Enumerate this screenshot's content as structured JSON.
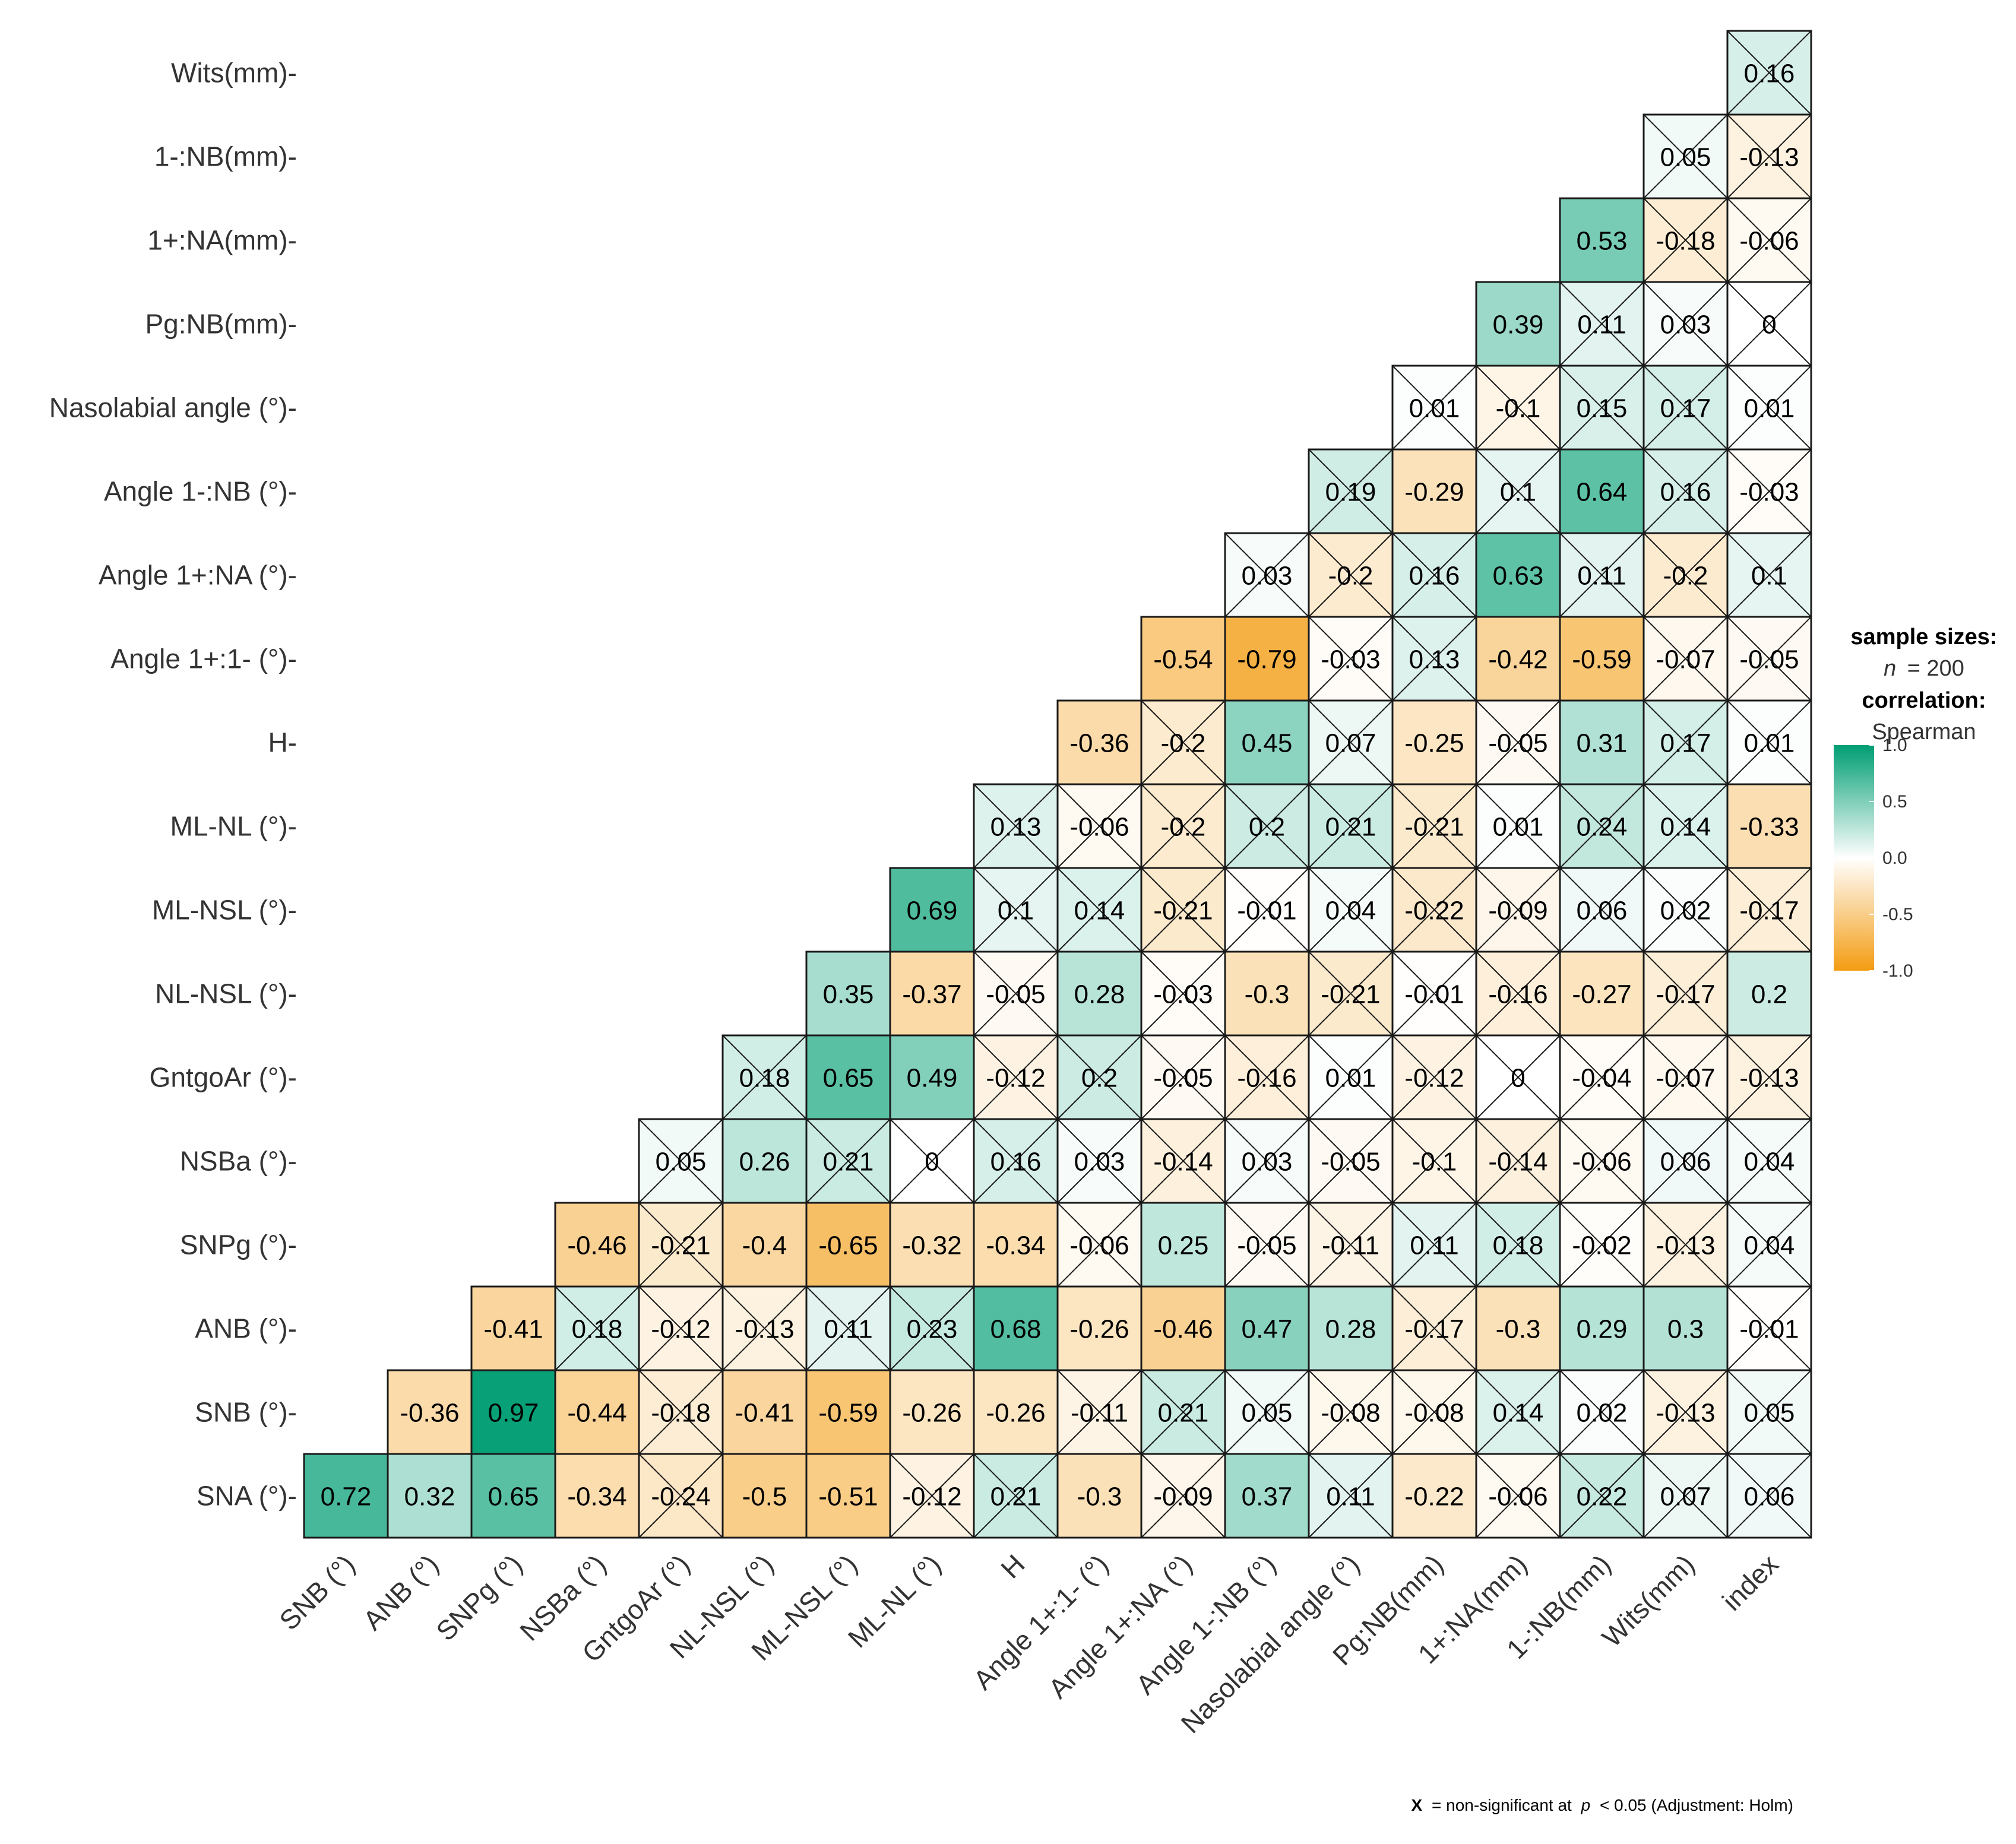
{
  "chart_data": {
    "type": "heatmap",
    "title": "",
    "rows": [
      "SNA (°)",
      "SNB (°)",
      "ANB (°)",
      "SNPg (°)",
      "NSBa (°)",
      "GntgoAr (°)",
      "NL-NSL (°)",
      "ML-NSL (°)",
      "ML-NL (°)",
      "H",
      "Angle 1+:1- (°)",
      "Angle 1+:NA (°)",
      "Angle 1-:NB (°)",
      "Nasolabial angle (°)",
      "Pg:NB(mm)",
      "1+:NA(mm)",
      "1-:NB(mm)",
      "Wits(mm)"
    ],
    "row_labels": [
      "SNA (°)-",
      "SNB (°)-",
      "ANB (°)-",
      "SNPg (°)-",
      "NSBa (°)-",
      "GntgoAr (°)-",
      "NL-NSL (°)-",
      "ML-NSL (°)-",
      "ML-NL (°)-",
      "H-",
      "Angle 1+:1- (°)-",
      "Angle 1+:NA (°)-",
      "Angle 1-:NB (°)-",
      "Nasolabial angle (°)-",
      "Pg:NB(mm)-",
      "1+:NA(mm)-",
      "1-:NB(mm)-",
      "Wits(mm)-"
    ],
    "columns": [
      "SNB (°)",
      "ANB (°)",
      "SNPg (°)",
      "NSBa (°)",
      "GntgoAr (°)",
      "NL-NSL (°)",
      "ML-NSL (°)",
      "ML-NL (°)",
      "H",
      "Angle 1+:1- (°)",
      "Angle 1+:NA (°)",
      "Angle 1-:NB (°)",
      "Nasolabial angle (°)",
      "Pg:NB(mm)",
      "1+:NA(mm)",
      "1-:NB(mm)",
      "Wits(mm)",
      "index"
    ],
    "values": [
      [
        "0.72",
        "0.32",
        "0.65",
        "-0.34",
        "-0.24",
        "-0.5",
        "-0.51",
        "-0.12",
        "0.21",
        "-0.3",
        "-0.09",
        "0.37",
        "0.11",
        "-0.22",
        "-0.06",
        "0.22",
        "0.07",
        "0.06"
      ],
      [
        null,
        "-0.36",
        "0.97",
        "-0.44",
        "-0.18",
        "-0.41",
        "-0.59",
        "-0.26",
        "-0.26",
        "-0.11",
        "0.21",
        "0.05",
        "-0.08",
        "-0.08",
        "0.14",
        "0.02",
        "-0.13",
        "0.05"
      ],
      [
        null,
        null,
        "-0.41",
        "0.18",
        "-0.12",
        "-0.13",
        "0.11",
        "0.23",
        "0.68",
        "-0.26",
        "-0.46",
        "0.47",
        "0.28",
        "-0.17",
        "-0.3",
        "0.29",
        "0.3",
        "-0.01"
      ],
      [
        null,
        null,
        null,
        "-0.46",
        "-0.21",
        "-0.4",
        "-0.65",
        "-0.32",
        "-0.34",
        "-0.06",
        "0.25",
        "-0.05",
        "-0.11",
        "0.11",
        "0.18",
        "-0.02",
        "-0.13",
        "0.04"
      ],
      [
        null,
        null,
        null,
        null,
        "0.05",
        "0.26",
        "0.21",
        "0",
        "0.16",
        "0.03",
        "-0.14",
        "0.03",
        "-0.05",
        "-0.1",
        "-0.14",
        "-0.06",
        "0.06",
        "0.04"
      ],
      [
        null,
        null,
        null,
        null,
        null,
        "0.18",
        "0.65",
        "0.49",
        "-0.12",
        "0.2",
        "-0.05",
        "-0.16",
        "0.01",
        "-0.12",
        "0",
        "-0.04",
        "-0.07",
        "-0.13"
      ],
      [
        null,
        null,
        null,
        null,
        null,
        null,
        "0.35",
        "-0.37",
        "-0.05",
        "0.28",
        "-0.03",
        "-0.3",
        "-0.21",
        "-0.01",
        "-0.16",
        "-0.27",
        "-0.17",
        "0.2"
      ],
      [
        null,
        null,
        null,
        null,
        null,
        null,
        null,
        "0.69",
        "0.1",
        "0.14",
        "-0.21",
        "-0.01",
        "0.04",
        "-0.22",
        "-0.09",
        "0.06",
        "0.02",
        "-0.17"
      ],
      [
        null,
        null,
        null,
        null,
        null,
        null,
        null,
        null,
        "0.13",
        "-0.06",
        "-0.2",
        "0.2",
        "0.21",
        "-0.21",
        "0.01",
        "0.24",
        "0.14",
        "-0.33"
      ],
      [
        null,
        null,
        null,
        null,
        null,
        null,
        null,
        null,
        null,
        "-0.36",
        "-0.2",
        "0.45",
        "0.07",
        "-0.25",
        "-0.05",
        "0.31",
        "0.17",
        "0.01"
      ],
      [
        null,
        null,
        null,
        null,
        null,
        null,
        null,
        null,
        null,
        null,
        "-0.54",
        "-0.79",
        "-0.03",
        "0.13",
        "-0.42",
        "-0.59",
        "-0.07",
        "-0.05"
      ],
      [
        null,
        null,
        null,
        null,
        null,
        null,
        null,
        null,
        null,
        null,
        null,
        "0.03",
        "-0.2",
        "0.16",
        "0.63",
        "0.11",
        "-0.2",
        "0.1"
      ],
      [
        null,
        null,
        null,
        null,
        null,
        null,
        null,
        null,
        null,
        null,
        null,
        null,
        "0.19",
        "-0.29",
        "0.1",
        "0.64",
        "0.16",
        "-0.03"
      ],
      [
        null,
        null,
        null,
        null,
        null,
        null,
        null,
        null,
        null,
        null,
        null,
        null,
        null,
        "0.01",
        "-0.1",
        "0.15",
        "0.17",
        "0.01"
      ],
      [
        null,
        null,
        null,
        null,
        null,
        null,
        null,
        null,
        null,
        null,
        null,
        null,
        null,
        null,
        "0.39",
        "0.11",
        "0.03",
        "0"
      ],
      [
        null,
        null,
        null,
        null,
        null,
        null,
        null,
        null,
        null,
        null,
        null,
        null,
        null,
        null,
        null,
        "0.53",
        "-0.18",
        "-0.06"
      ],
      [
        null,
        null,
        null,
        null,
        null,
        null,
        null,
        null,
        null,
        null,
        null,
        null,
        null,
        null,
        null,
        null,
        "0.05",
        "-0.13"
      ],
      [
        null,
        null,
        null,
        null,
        null,
        null,
        null,
        null,
        null,
        null,
        null,
        null,
        null,
        null,
        null,
        null,
        null,
        "0.16"
      ]
    ],
    "non_significant": [
      [
        false,
        false,
        false,
        false,
        true,
        false,
        false,
        true,
        true,
        false,
        true,
        false,
        true,
        false,
        true,
        true,
        true,
        true
      ],
      [
        false,
        false,
        false,
        false,
        true,
        false,
        false,
        false,
        false,
        true,
        true,
        true,
        true,
        true,
        true,
        true,
        true,
        true
      ],
      [
        false,
        false,
        false,
        true,
        true,
        true,
        true,
        true,
        false,
        false,
        false,
        false,
        false,
        true,
        false,
        false,
        false,
        true
      ],
      [
        false,
        false,
        false,
        false,
        true,
        false,
        false,
        false,
        false,
        true,
        false,
        true,
        true,
        true,
        true,
        true,
        true,
        true
      ],
      [
        false,
        false,
        false,
        false,
        true,
        false,
        true,
        true,
        true,
        true,
        true,
        true,
        true,
        true,
        true,
        true,
        true,
        true
      ],
      [
        false,
        false,
        false,
        false,
        false,
        true,
        false,
        false,
        true,
        true,
        true,
        true,
        true,
        true,
        true,
        true,
        true,
        true
      ],
      [
        false,
        false,
        false,
        false,
        false,
        false,
        false,
        false,
        true,
        false,
        true,
        false,
        true,
        true,
        true,
        false,
        true,
        false
      ],
      [
        false,
        false,
        false,
        false,
        false,
        false,
        false,
        false,
        true,
        true,
        true,
        true,
        true,
        true,
        true,
        true,
        true,
        true
      ],
      [
        false,
        false,
        false,
        false,
        false,
        false,
        false,
        false,
        true,
        true,
        true,
        true,
        true,
        true,
        true,
        true,
        true,
        false
      ],
      [
        false,
        false,
        false,
        false,
        false,
        false,
        false,
        false,
        false,
        false,
        true,
        false,
        true,
        false,
        true,
        false,
        true,
        true
      ],
      [
        false,
        false,
        false,
        false,
        false,
        false,
        false,
        false,
        false,
        false,
        false,
        false,
        true,
        true,
        false,
        false,
        true,
        true
      ],
      [
        false,
        false,
        false,
        false,
        false,
        false,
        false,
        false,
        false,
        false,
        false,
        true,
        true,
        true,
        false,
        true,
        true,
        true
      ],
      [
        false,
        false,
        false,
        false,
        false,
        false,
        false,
        false,
        false,
        false,
        false,
        false,
        true,
        false,
        true,
        false,
        true,
        true
      ],
      [
        false,
        false,
        false,
        false,
        false,
        false,
        false,
        false,
        false,
        false,
        false,
        false,
        false,
        true,
        true,
        true,
        true,
        true
      ],
      [
        false,
        false,
        false,
        false,
        false,
        false,
        false,
        false,
        false,
        false,
        false,
        false,
        false,
        false,
        false,
        true,
        true,
        true
      ],
      [
        false,
        false,
        false,
        false,
        false,
        false,
        false,
        false,
        false,
        false,
        false,
        false,
        false,
        false,
        false,
        false,
        true,
        true
      ],
      [
        false,
        false,
        false,
        false,
        false,
        false,
        false,
        false,
        false,
        false,
        false,
        false,
        false,
        false,
        false,
        false,
        true,
        true
      ],
      [
        false,
        false,
        false,
        false,
        false,
        false,
        false,
        false,
        false,
        false,
        false,
        false,
        false,
        false,
        false,
        false,
        false,
        true
      ]
    ],
    "color_scale": {
      "min": -1.0,
      "max": 1.0,
      "low_color": "#f39c12",
      "mid_color": "#ffffff",
      "high_color": "#009e73",
      "ticks": [
        "1.0",
        "0.5",
        "0.0",
        "-0.5",
        "-1.0"
      ]
    },
    "legend": {
      "placement": "right",
      "sample_sizes_title": "sample sizes:",
      "n_label": "n",
      "n_value": "= 200",
      "correlation_title": "correlation:",
      "method": "Spearman"
    },
    "caption": {
      "x_mark": "X",
      "text": "= non-significant at",
      "p_label": "p",
      "threshold": "< 0.05 (Adjustment: Holm)"
    }
  }
}
